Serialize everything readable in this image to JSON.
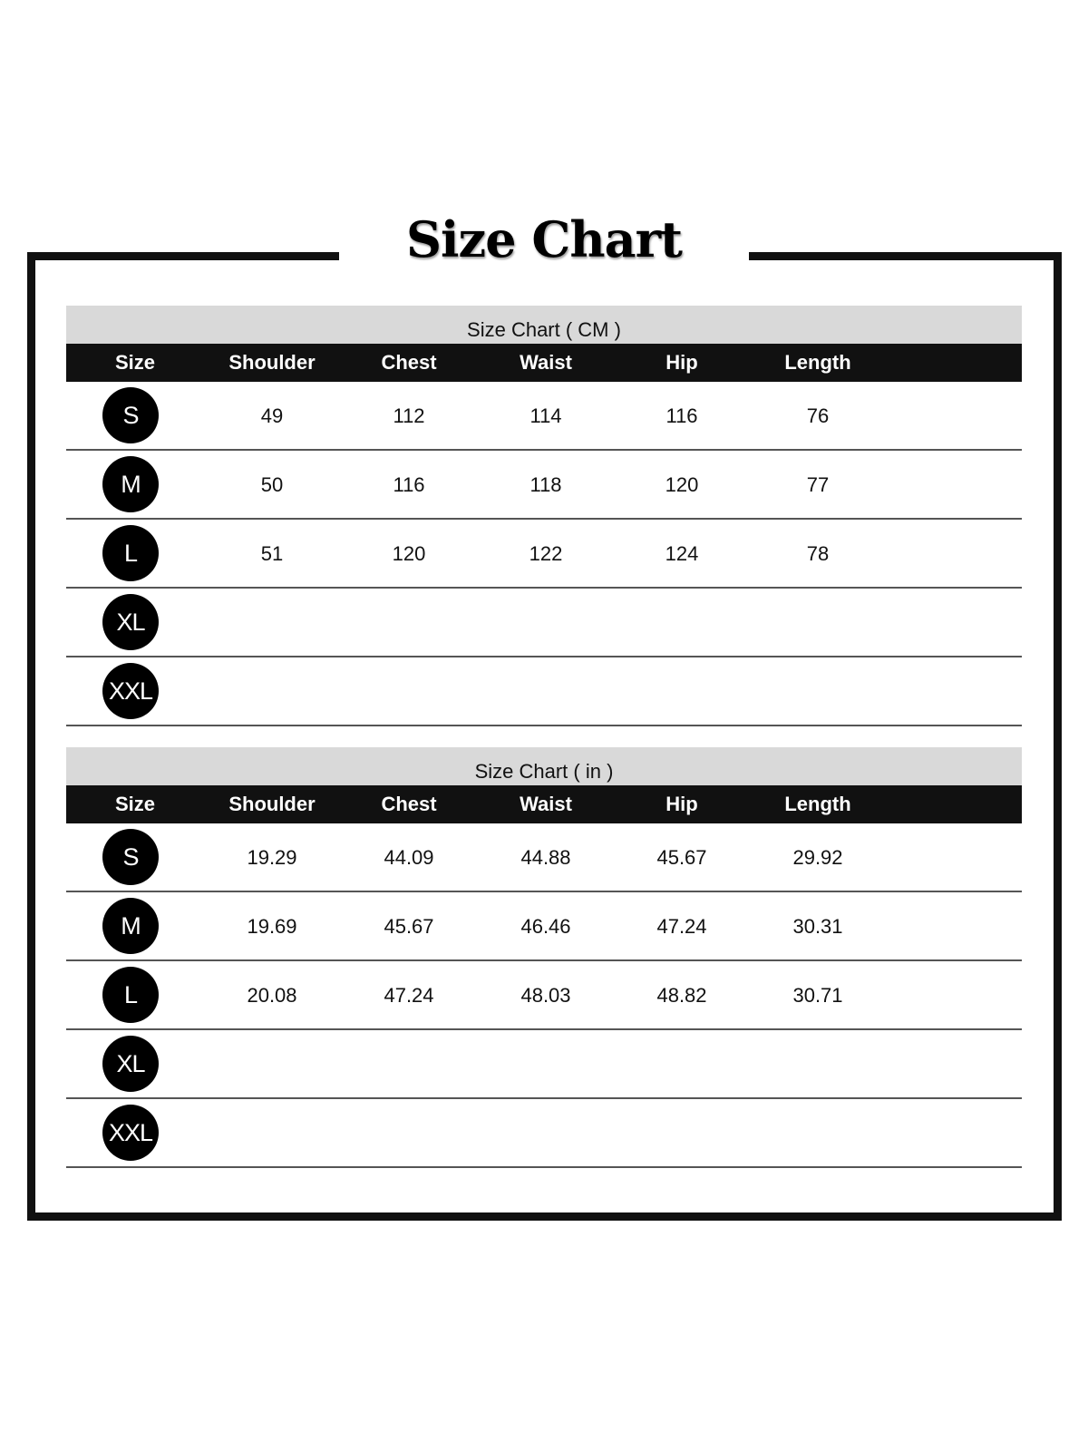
{
  "title": "Size Chart",
  "columns": [
    "Size",
    "Shoulder",
    "Chest",
    "Waist",
    "Hip",
    "Length"
  ],
  "tables": [
    {
      "caption": "Size Chart ( CM )",
      "rows": [
        {
          "size": "S",
          "values": [
            "49",
            "112",
            "114",
            "116",
            "76"
          ]
        },
        {
          "size": "M",
          "values": [
            "50",
            "116",
            "118",
            "120",
            "77"
          ]
        },
        {
          "size": "L",
          "values": [
            "51",
            "120",
            "122",
            "124",
            "78"
          ]
        },
        {
          "size": "XL",
          "values": []
        },
        {
          "size": "XXL",
          "values": []
        }
      ]
    },
    {
      "caption": "Size Chart ( in )",
      "rows": [
        {
          "size": "S",
          "values": [
            "19.29",
            "44.09",
            "44.88",
            "45.67",
            "29.92"
          ]
        },
        {
          "size": "M",
          "values": [
            "19.69",
            "45.67",
            "46.46",
            "47.24",
            "30.31"
          ]
        },
        {
          "size": "L",
          "values": [
            "20.08",
            "47.24",
            "48.03",
            "48.82",
            "30.71"
          ]
        },
        {
          "size": "XL",
          "values": []
        },
        {
          "size": "XXL",
          "values": []
        }
      ]
    }
  ]
}
